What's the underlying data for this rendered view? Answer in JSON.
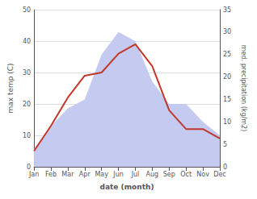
{
  "chart_data": {
    "type": "line",
    "xlabel": "date (month)",
    "ylabel": "max temp (C)",
    "y2label": "med. precipitation (kg/m2)",
    "categories": [
      "Jan",
      "Feb",
      "Mar",
      "Apr",
      "May",
      "Jun",
      "Jul",
      "Aug",
      "Sep",
      "Oct",
      "Nov",
      "Dec"
    ],
    "series": [
      {
        "type": "area",
        "axis": "y2",
        "color": "#c5caf0",
        "values": [
          4,
          9,
          13,
          15,
          25,
          30,
          28,
          19,
          14,
          14,
          10,
          7
        ]
      },
      {
        "type": "line",
        "color": "#c0392b",
        "values": [
          5,
          13,
          22,
          29,
          30,
          36,
          39,
          32,
          18,
          12,
          12,
          9
        ]
      }
    ],
    "ylim": [
      0,
      50
    ],
    "yticks": [
      0,
      10,
      20,
      30,
      40,
      50
    ],
    "y2lim": [
      0,
      35
    ],
    "y2ticks": [
      0,
      5,
      10,
      15,
      20,
      25,
      30,
      35
    ],
    "grid": true
  }
}
